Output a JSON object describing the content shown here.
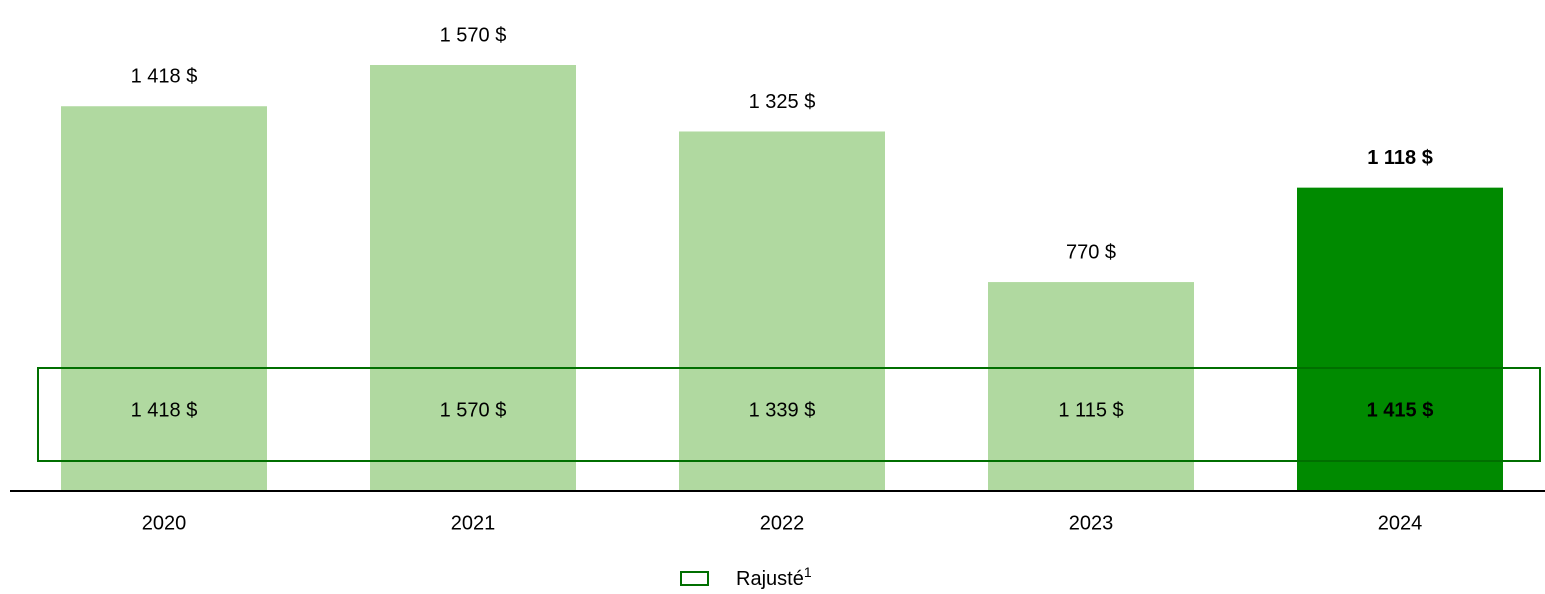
{
  "chart_data": {
    "type": "bar",
    "categories": [
      "2020",
      "2021",
      "2022",
      "2023",
      "2024"
    ],
    "values": [
      1418,
      1570,
      1325,
      770,
      1118
    ],
    "value_labels": [
      "1 418 $",
      "1 570 $",
      "1 325 $",
      "770 $",
      "1 118 $"
    ],
    "colors": [
      "#b0d9a0",
      "#b0d9a0",
      "#b0d9a0",
      "#b0d9a0",
      "#008a00"
    ],
    "adjusted": {
      "name": "Rajusté",
      "name_superscript": "1",
      "color": "#006f00",
      "values": [
        1418,
        1570,
        1339,
        1115,
        1415
      ],
      "value_labels": [
        "1 418 $",
        "1 570 $",
        "1 339 $",
        "1 115 $",
        "1 415 $"
      ]
    }
  }
}
